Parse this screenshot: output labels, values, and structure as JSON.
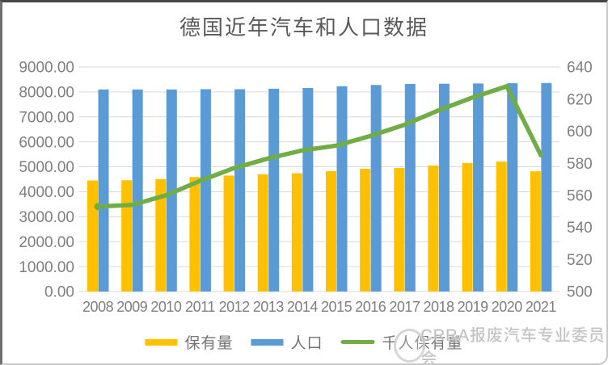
{
  "title": "德国近年汽车和人口数据",
  "watermark": "CRRA报废汽车专业委员会",
  "colors": {
    "bar_holdings": "#FFC000",
    "bar_population": "#5B9BD5",
    "line_per_thousand": "#70AD47",
    "gridline": "#D9D9D9",
    "axis_text": "#7F7F7F",
    "title_text": "#595959",
    "watermark_text": "#B5B5B5"
  },
  "chart_data": {
    "type": "bar+line combo, dual y-axes",
    "title": "德国近年汽车和人口数据",
    "categories": [
      "2008",
      "2009",
      "2010",
      "2011",
      "2012",
      "2013",
      "2014",
      "2015",
      "2016",
      "2017",
      "2018",
      "2019",
      "2020",
      "2021"
    ],
    "series": [
      {
        "name": "保有量",
        "type": "bar",
        "axis": "left",
        "color": "#FFC000",
        "values": [
          4450,
          4460,
          4510,
          4590,
          4650,
          4700,
          4740,
          4830,
          4920,
          4950,
          5050,
          5150,
          5210,
          4820
        ]
      },
      {
        "name": "人口",
        "type": "bar",
        "axis": "left",
        "color": "#5B9BD5",
        "values": [
          8100,
          8100,
          8100,
          8110,
          8110,
          8130,
          8160,
          8230,
          8280,
          8320,
          8330,
          8340,
          8350,
          8360
        ]
      },
      {
        "name": "千人保有量",
        "type": "line",
        "axis": "right",
        "color": "#70AD47",
        "values": [
          553,
          554,
          560,
          569,
          577,
          583,
          588,
          591,
          597,
          604,
          613,
          621,
          628,
          585
        ]
      }
    ],
    "left_axis": {
      "min": 0,
      "max": 9000,
      "step": 1000,
      "decimals": 2,
      "tick_labels": [
        "0.00",
        "1000.00",
        "2000.00",
        "3000.00",
        "4000.00",
        "5000.00",
        "6000.00",
        "7000.00",
        "8000.00",
        "9000.00"
      ]
    },
    "right_axis": {
      "min": 500,
      "max": 640,
      "step": 20,
      "tick_labels": [
        "500",
        "520",
        "540",
        "560",
        "580",
        "600",
        "620",
        "640"
      ]
    },
    "grid": true,
    "legend_position": "bottom"
  },
  "legend": {
    "items": [
      {
        "label": "保有量",
        "swatch": "yellow-bar"
      },
      {
        "label": "人口",
        "swatch": "blue-bar"
      },
      {
        "label": "千人保有量",
        "swatch": "green-line"
      }
    ]
  }
}
